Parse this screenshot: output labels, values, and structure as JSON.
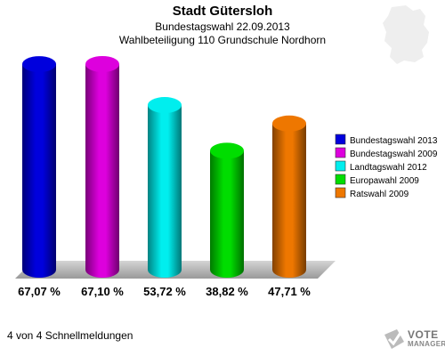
{
  "header": {
    "title": "Stadt Gütersloh",
    "subtitle1": "Bundestagswahl 22.09.2013",
    "subtitle2": "Wahlbeteiligung 110 Grundschule Nordhorn"
  },
  "footer": {
    "text": "4 von 4 Schnellmeldungen"
  },
  "logo": {
    "line1": "VOTE",
    "line2": "MANAGER"
  },
  "chart_data": {
    "type": "bar",
    "title": "Wahlbeteiligung 110 Grundschule Nordhorn",
    "categories": [
      "Bundestagswahl 2013",
      "Bundestagswahl 2009",
      "Landtagswahl 2012",
      "Europawahl 2009",
      "Ratswahl 2009"
    ],
    "values": [
      67.07,
      67.1,
      53.72,
      38.82,
      47.71
    ],
    "value_labels": [
      "67,07 %",
      "67,10 %",
      "53,72 %",
      "38,82 %",
      "47,71 %"
    ],
    "colors": [
      "#0000dd",
      "#dd00dd",
      "#00eeee",
      "#00dd00",
      "#ee7700"
    ],
    "ylim": [
      0,
      67.1
    ],
    "legend_position": "right",
    "grid": false
  }
}
